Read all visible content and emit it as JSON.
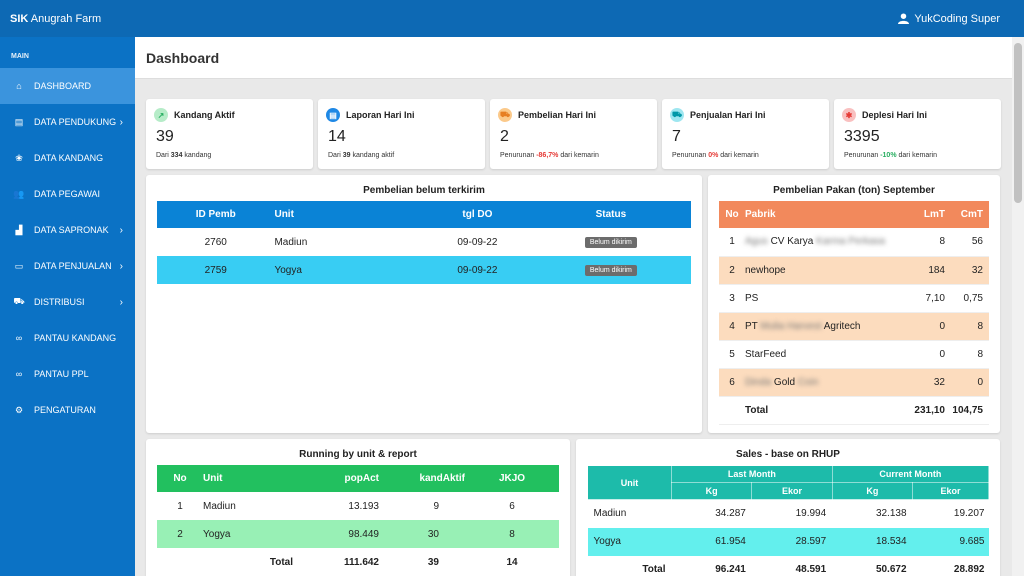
{
  "topbar": {
    "brand_bold": "SIK",
    "brand_rest": " Anugrah Farm",
    "user_name": "YukCoding Super"
  },
  "sidebar": {
    "heading": "MAIN",
    "items": [
      {
        "label": "DASHBOARD",
        "icon": "home-icon",
        "chevron": false,
        "active": true
      },
      {
        "label": "DATA PENDUKUNG",
        "icon": "file-icon",
        "chevron": true
      },
      {
        "label": "DATA KANDANG",
        "icon": "paw-icon",
        "chevron": false
      },
      {
        "label": "DATA PEGAWAI",
        "icon": "users-icon",
        "chevron": false
      },
      {
        "label": "DATA SAPRONAK",
        "icon": "chart-icon",
        "chevron": true
      },
      {
        "label": "DATA PENJUALAN",
        "icon": "store-icon",
        "chevron": true
      },
      {
        "label": "DISTRIBUSI",
        "icon": "truck-icon",
        "chevron": true
      },
      {
        "label": "PANTAU KANDANG",
        "icon": "binoculars-icon",
        "chevron": false
      },
      {
        "label": "PANTAU PPL",
        "icon": "binoculars-icon",
        "chevron": false
      },
      {
        "label": "PENGATURAN",
        "icon": "gear-icon",
        "chevron": false
      }
    ]
  },
  "page": {
    "title": "Dashboard"
  },
  "stats": [
    {
      "title": "Kandang Aktif",
      "value": "39",
      "sub_pre": "Dari ",
      "sub_hl": "334",
      "sub_post": " kandang",
      "icon_color": "#b6ecc8",
      "icon_fg": "#27ae60",
      "icon": "chart-line-icon"
    },
    {
      "title": "Laporan Hari Ini",
      "value": "14",
      "sub_pre": "Dari ",
      "sub_hl": "39",
      "sub_post": " kandang aktif",
      "icon_color": "#1e88e5",
      "icon_fg": "#ffffff",
      "icon": "report-icon"
    },
    {
      "title": "Pembelian Hari Ini",
      "value": "2",
      "sub_pre": "Penurunan ",
      "sub_hl": "-86,7%",
      "sub_post": " dari kemarin",
      "hl_color": "red",
      "icon_color": "#fbc98a",
      "icon_fg": "#e67e22",
      "icon": "truck-icon"
    },
    {
      "title": "Penjualan Hari Ini",
      "value": "7",
      "sub_pre": "Penurunan ",
      "sub_hl": "0%",
      "sub_post": " dari kemarin",
      "hl_color": "red",
      "icon_color": "#9ee6f0",
      "icon_fg": "#0097a7",
      "icon": "cart-icon"
    },
    {
      "title": "Deplesi Hari Ini",
      "value": "3395",
      "sub_pre": "Penurunan ",
      "sub_hl": "-10%",
      "sub_post": " dari kemarin",
      "hl_color": "green",
      "icon_color": "#f9c0c0",
      "icon_fg": "#e53935",
      "icon": "bug-icon"
    }
  ],
  "pembelian": {
    "title": "Pembelian belum terkirim",
    "headers": [
      "ID Pemb",
      "Unit",
      "tgl DO",
      "Status"
    ],
    "rows": [
      [
        "2760",
        "Madiun",
        "09-09-22",
        "Belum dikirim"
      ],
      [
        "2759",
        "Yogya",
        "09-09-22",
        "Belum dikirim"
      ]
    ]
  },
  "pakan": {
    "title": "Pembelian Pakan (ton) September",
    "headers": [
      "No",
      "Pabrik",
      "LmT",
      "CmT"
    ],
    "rows": [
      {
        "no": "1",
        "pre": "Agus",
        "mid": " CV Karya ",
        "post": "Karma Perkasa",
        "lmt": "8",
        "cmt": "56"
      },
      {
        "no": "2",
        "pre": "",
        "mid": "newhope",
        "post": "",
        "lmt": "184",
        "cmt": "32"
      },
      {
        "no": "3",
        "pre": "",
        "mid": "PS",
        "post": "",
        "lmt": "7,10",
        "cmt": "0,75"
      },
      {
        "no": "4",
        "pre": "",
        "mid": "PT ",
        "post": "Mulia Harvest",
        "mid2": " Agritech",
        "lmt": "0",
        "cmt": "8"
      },
      {
        "no": "5",
        "pre": "",
        "mid": "StarFeed",
        "post": "",
        "lmt": "0",
        "cmt": "8"
      },
      {
        "no": "6",
        "pre": "Dinda",
        "mid": " Gold ",
        "post": "Coin",
        "lmt": "32",
        "cmt": "0"
      }
    ],
    "total_label": "Total",
    "total_lmt": "231,10",
    "total_cmt": "104,75"
  },
  "running": {
    "title": "Running by unit & report",
    "headers": [
      "No",
      "Unit",
      "popAct",
      "kandAktif",
      "JKJO"
    ],
    "rows": [
      [
        "1",
        "Madiun",
        "13.193",
        "9",
        "6"
      ],
      [
        "2",
        "Yogya",
        "98.449",
        "30",
        "8"
      ]
    ],
    "total": [
      "Total",
      "111.642",
      "39",
      "14"
    ]
  },
  "sales": {
    "title": "Sales - base on RHUP",
    "unit_header": "Unit",
    "group_headers": [
      "Last Month",
      "Current Month"
    ],
    "sub_headers": [
      "Kg",
      "Ekor",
      "Kg",
      "Ekor"
    ],
    "rows": [
      [
        "Madiun",
        "34.287",
        "19.994",
        "32.138",
        "19.207"
      ],
      [
        "Yogya",
        "61.954",
        "28.597",
        "18.534",
        "9.685"
      ]
    ],
    "total": [
      "Total",
      "96.241",
      "48.591",
      "50.672",
      "28.892"
    ]
  }
}
